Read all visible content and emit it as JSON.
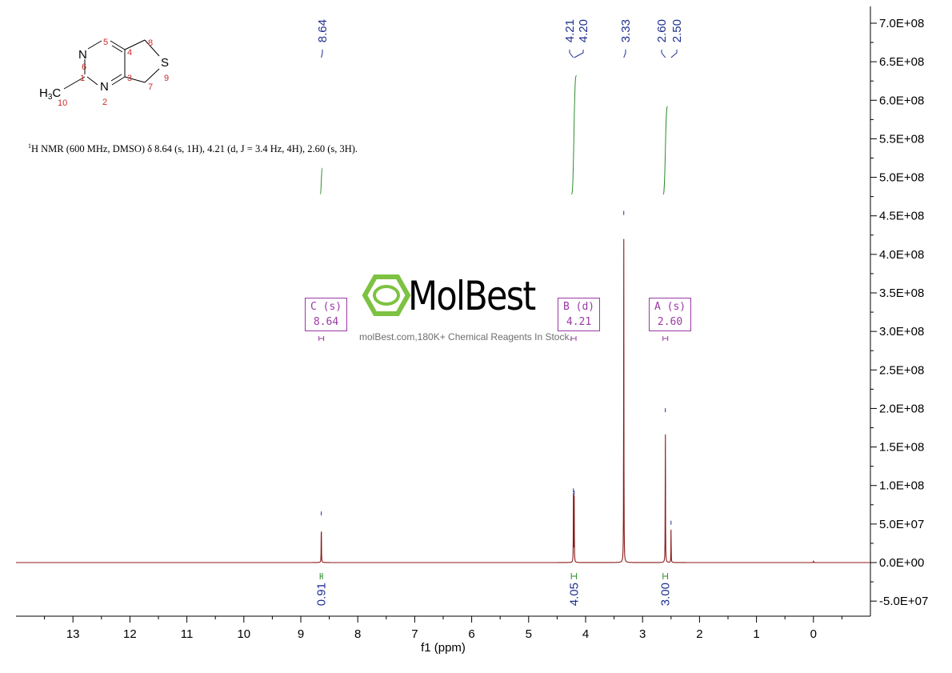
{
  "caption": {
    "nucleus_sup": "1",
    "text": "H NMR (600 MHz, DMSO) δ 8.64 (s, 1H), 4.21 (d, J = 3.4 Hz, 4H), 2.60 (s, 3H)."
  },
  "watermark": {
    "brand": "MolBest",
    "tagline": "molBest.com,180K+ Chemical Reagents In Stock."
  },
  "molecule": {
    "atoms": [
      "N",
      "N",
      "S",
      "H3C"
    ],
    "numbers": [
      "1",
      "2",
      "3",
      "4",
      "5",
      "6",
      "7",
      "8",
      "9",
      "10"
    ]
  },
  "multiplets": [
    {
      "label": "C (s)",
      "shift": "8.64"
    },
    {
      "label": "B (d)",
      "shift": "4.21"
    },
    {
      "label": "A (s)",
      "shift": "2.60"
    }
  ],
  "colors": {
    "spectrum": "#8b1a1a",
    "integral": "#2e8b2e",
    "peak_label": "#1f2f8f",
    "multiplet_box": "#9a3aa4",
    "brand_green": "#7dc242",
    "atom_number": "#cc2a2a"
  },
  "chart_data": {
    "type": "line",
    "xlabel": "f1 (ppm)",
    "x_reversed": true,
    "xlim": [
      14,
      -1
    ],
    "ylim": [
      -70000000,
      720000000
    ],
    "x_ticks": [
      13,
      12,
      11,
      10,
      9,
      8,
      7,
      6,
      5,
      4,
      3,
      2,
      1,
      0
    ],
    "y_ticks": [
      "7.0E+08",
      "6.5E+08",
      "6.0E+08",
      "5.5E+08",
      "5.0E+08",
      "4.5E+08",
      "4.0E+08",
      "3.5E+08",
      "3.0E+08",
      "2.5E+08",
      "2.0E+08",
      "1.5E+08",
      "1.0E+08",
      "5.0E+07",
      "0.0E+00",
      "-5.0E+07"
    ],
    "y_tick_values": [
      700000000,
      650000000,
      600000000,
      550000000,
      500000000,
      450000000,
      400000000,
      350000000,
      300000000,
      250000000,
      200000000,
      150000000,
      100000000,
      50000000,
      0,
      -50000000
    ],
    "peak_labels": [
      "8.64",
      "4.21",
      "4.20",
      "3.33",
      "2.60",
      "2.50"
    ],
    "peaks": [
      {
        "ppm": 8.64,
        "height": 58000000
      },
      {
        "ppm": 4.214,
        "height": 88000000
      },
      {
        "ppm": 4.2,
        "height": 85000000
      },
      {
        "ppm": 3.33,
        "height": 448000000
      },
      {
        "ppm": 2.6,
        "height": 192000000
      },
      {
        "ppm": 2.5,
        "height": 46000000
      },
      {
        "ppm": 0.0,
        "height": 2500000
      }
    ],
    "integrals": [
      {
        "from": 8.66,
        "to": 8.62,
        "value": "0.91",
        "y_start": 478000000,
        "y_end": 512000000
      },
      {
        "from": 4.25,
        "to": 4.16,
        "value": "4.05",
        "y_start": 478000000,
        "y_end": 632000000
      },
      {
        "from": 2.64,
        "to": 2.56,
        "value": "3.00",
        "y_start": 478000000,
        "y_end": 592000000
      }
    ]
  }
}
